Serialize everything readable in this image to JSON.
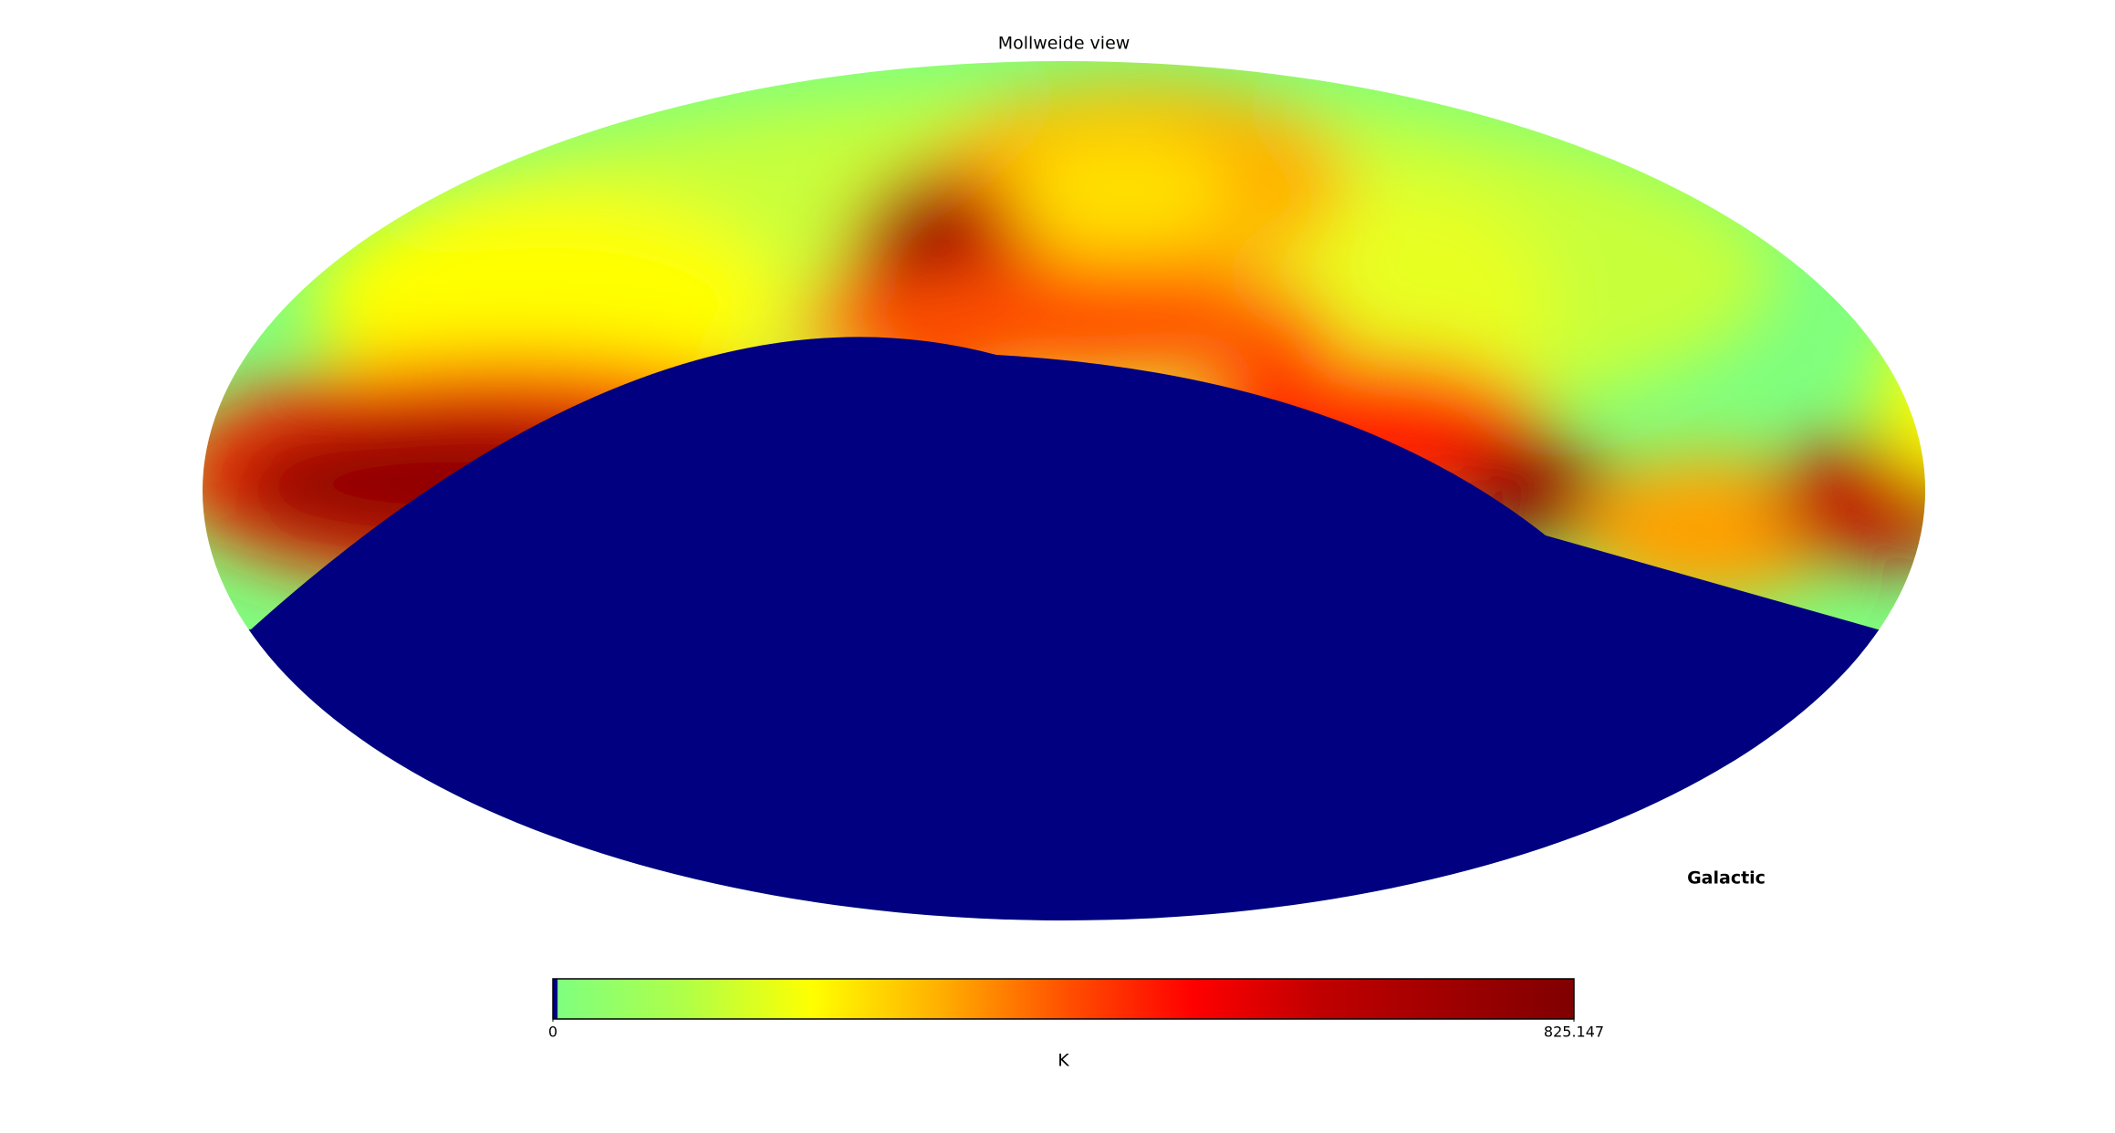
{
  "chart_data": {
    "type": "mollweide",
    "title": "Mollweide view",
    "coord_label": "Galactic",
    "colorbar": {
      "label": "K",
      "lim": [
        0,
        825.147
      ],
      "ticks": [
        0,
        825.147
      ],
      "colors": [
        "#000080",
        "#7fff7f",
        "#b0ff47",
        "#ffff00",
        "#ffb000",
        "#ff5000",
        "#ff0000",
        "#c00000",
        "#a00000",
        "#800000"
      ]
    }
  }
}
